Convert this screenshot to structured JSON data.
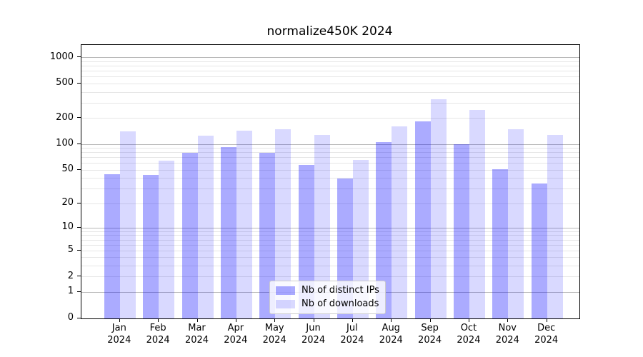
{
  "title": "normalize450K 2024",
  "year": "2024",
  "legend": {
    "items": [
      {
        "label": "Nb of distinct IPs",
        "color": "rgba(0,0,255,0.33)"
      },
      {
        "label": "Nb of downloads",
        "color": "rgba(0,0,255,0.15)"
      }
    ]
  },
  "axes": {
    "y_tick_labels": [
      "0",
      "1",
      "2",
      "5",
      "10",
      "20",
      "50",
      "100",
      "200",
      "500",
      "1000"
    ],
    "x_tick_months": [
      "Jan",
      "Feb",
      "Mar",
      "Apr",
      "May",
      "Jun",
      "Jul",
      "Aug",
      "Sep",
      "Oct",
      "Nov",
      "Dec"
    ]
  },
  "chart_data": {
    "type": "bar",
    "title": "normalize450K 2024",
    "categories": [
      "Jan 2024",
      "Feb 2024",
      "Mar 2024",
      "Apr 2024",
      "May 2024",
      "Jun 2024",
      "Jul 2024",
      "Aug 2024",
      "Sep 2024",
      "Oct 2024",
      "Nov 2024",
      "Dec 2024"
    ],
    "series": [
      {
        "name": "Nb of distinct IPs",
        "color": "rgba(0,0,255,0.33)",
        "values": [
          45,
          44,
          80,
          93,
          80,
          57,
          40,
          105,
          185,
          100,
          51,
          35
        ]
      },
      {
        "name": "Nb of downloads",
        "color": "rgba(0,0,255,0.15)",
        "values": [
          140,
          65,
          125,
          143,
          150,
          128,
          66,
          160,
          330,
          250,
          150,
          128
        ]
      }
    ],
    "xlabel": "",
    "ylabel": "",
    "yscale": "log1p",
    "yticks": [
      0,
      1,
      2,
      5,
      10,
      20,
      50,
      100,
      200,
      500,
      1000
    ],
    "ylim": [
      0,
      1400
    ],
    "grid": true,
    "legend_position": "lower center"
  }
}
